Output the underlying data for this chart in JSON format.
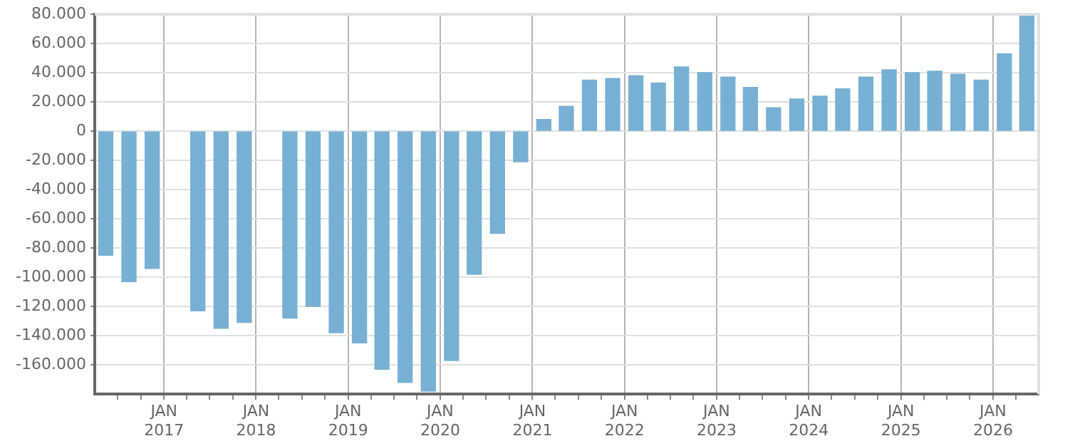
{
  "chart_data": {
    "type": "bar",
    "color": "#78b0d4",
    "x": [
      "2016-05-15",
      "2016-08-15",
      "2016-11-15",
      "2017-02-15",
      "2017-05-15",
      "2017-08-15",
      "2017-11-15",
      "2018-02-15",
      "2018-05-15",
      "2018-08-15",
      "2018-11-15",
      "2019-02-15",
      "2019-05-15",
      "2019-08-15",
      "2019-11-15",
      "2020-02-15",
      "2020-05-15",
      "2020-08-15",
      "2020-11-15",
      "2021-02-15",
      "2021-05-15",
      "2021-08-15",
      "2021-11-15",
      "2022-02-15",
      "2022-05-15",
      "2022-08-15",
      "2022-11-15",
      "2023-02-15",
      "2023-05-15",
      "2023-08-15",
      "2023-11-15",
      "2024-02-15",
      "2024-05-15",
      "2024-08-15",
      "2024-11-15",
      "2025-02-15",
      "2025-05-15",
      "2025-08-15",
      "2025-11-15",
      "2026-02-15",
      "2026-05-15"
    ],
    "values": [
      -85000,
      -103000,
      -94000,
      null,
      -123000,
      -135000,
      -131000,
      null,
      -128000,
      -120000,
      -138000,
      -145000,
      -163000,
      -172000,
      -178000,
      -157000,
      -98000,
      -70000,
      -21000,
      8000,
      17000,
      35000,
      36000,
      38000,
      33000,
      44000,
      40000,
      37000,
      30000,
      16000,
      22000,
      24000,
      29000,
      37000,
      42000,
      40000,
      41000,
      39000,
      35000,
      53000,
      80000
    ],
    "xlim": [
      "2016-04",
      "2026-07"
    ],
    "xticks": [
      {
        "value": "2016-07",
        "label": null
      },
      {
        "value": "2016-10",
        "label": null
      },
      {
        "value": "2017-01",
        "label": "JAN 2017"
      },
      {
        "value": "2017-04",
        "label": null
      },
      {
        "value": "2017-07",
        "label": null
      },
      {
        "value": "2017-10",
        "label": null
      },
      {
        "value": "2018-01",
        "label": "JAN 2018"
      },
      {
        "value": "2018-04",
        "label": null
      },
      {
        "value": "2018-07",
        "label": null
      },
      {
        "value": "2018-10",
        "label": null
      },
      {
        "value": "2019-01",
        "label": "JAN 2019"
      },
      {
        "value": "2019-04",
        "label": null
      },
      {
        "value": "2019-07",
        "label": null
      },
      {
        "value": "2019-10",
        "label": null
      },
      {
        "value": "2020-01",
        "label": "JAN 2020"
      },
      {
        "value": "2020-04",
        "label": null
      },
      {
        "value": "2020-07",
        "label": null
      },
      {
        "value": "2020-10",
        "label": null
      },
      {
        "value": "2021-01",
        "label": "JAN 2021"
      },
      {
        "value": "2021-04",
        "label": null
      },
      {
        "value": "2021-07",
        "label": null
      },
      {
        "value": "2021-10",
        "label": null
      },
      {
        "value": "2022-01",
        "label": "JAN 2022"
      },
      {
        "value": "2022-04",
        "label": null
      },
      {
        "value": "2022-07",
        "label": null
      },
      {
        "value": "2022-10",
        "label": null
      },
      {
        "value": "2023-01",
        "label": "JAN 2023"
      },
      {
        "value": "2023-04",
        "label": null
      },
      {
        "value": "2023-07",
        "label": null
      },
      {
        "value": "2023-10",
        "label": null
      },
      {
        "value": "2024-01",
        "label": "JAN 2024"
      },
      {
        "value": "2024-04",
        "label": null
      },
      {
        "value": "2024-07",
        "label": null
      },
      {
        "value": "2024-10",
        "label": null
      },
      {
        "value": "2025-01",
        "label": "JAN 2025"
      },
      {
        "value": "2025-04",
        "label": null
      },
      {
        "value": "2025-07",
        "label": null
      },
      {
        "value": "2025-10",
        "label": null
      },
      {
        "value": "2026-01",
        "label": "JAN 2026"
      },
      {
        "value": "2026-04",
        "label": null
      }
    ],
    "ylim": [
      -180000,
      80000
    ],
    "yticks": [
      {
        "value": -160000,
        "label": "-160.000"
      },
      {
        "value": -140000,
        "label": "-140.000"
      },
      {
        "value": -120000,
        "label": "-120.000"
      },
      {
        "value": -100000,
        "label": "-100.000"
      },
      {
        "value": -80000,
        "label": "-80.000"
      },
      {
        "value": -60000,
        "label": "-60.000"
      },
      {
        "value": -40000,
        "label": "-40.000"
      },
      {
        "value": -20000,
        "label": "-20.000"
      },
      {
        "value": 0,
        "label": "0"
      },
      {
        "value": 20000,
        "label": "20.000"
      },
      {
        "value": 40000,
        "label": "40.000"
      },
      {
        "value": 60000,
        "label": "60.000"
      },
      {
        "value": 80000,
        "label": "80.000"
      }
    ],
    "grid": true
  }
}
